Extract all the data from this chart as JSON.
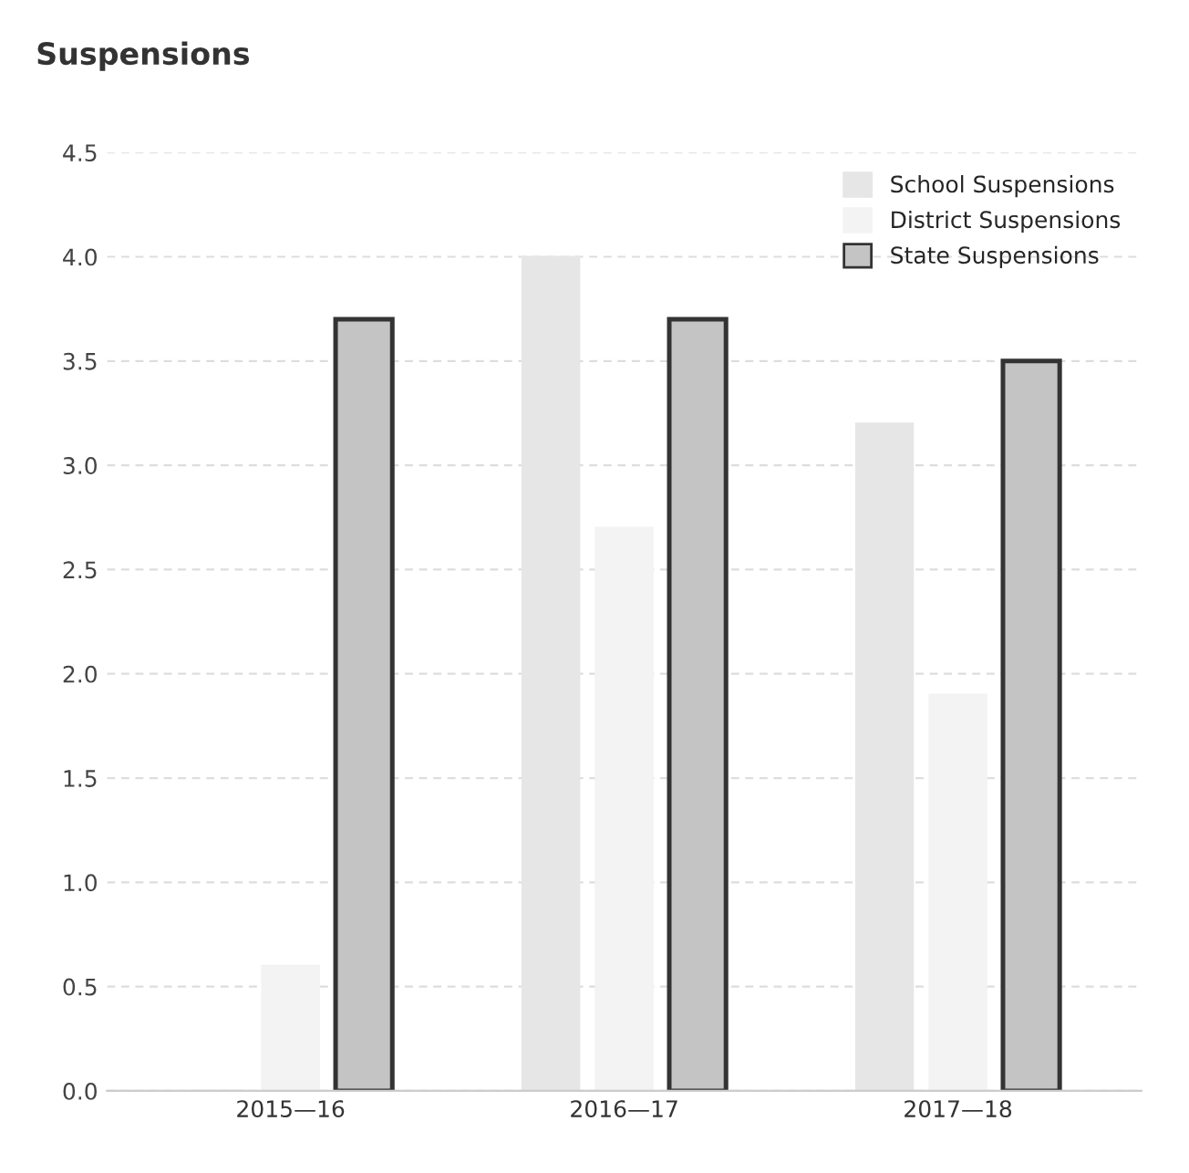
{
  "chart_data": {
    "type": "bar",
    "title": "Suspensions",
    "categories": [
      "2015—16",
      "2016—17",
      "2017—18"
    ],
    "series": [
      {
        "name": "School Suspensions",
        "color": "#e6e6e6",
        "values": [
          0.0,
          4.0,
          3.2
        ]
      },
      {
        "name": "District Suspensions",
        "color": "#f3f3f3",
        "values": [
          0.6,
          2.7,
          1.9
        ]
      },
      {
        "name": "State Suspensions",
        "color": "#c4c4c4",
        "values": [
          3.7,
          3.7,
          3.5
        ]
      }
    ],
    "ylim": [
      0,
      4.5
    ],
    "yticks": [
      {
        "value": 0,
        "label": "0.0"
      },
      {
        "value": 0.5,
        "label": "0.5"
      },
      {
        "value": 1,
        "label": "1.0"
      },
      {
        "value": 1.5,
        "label": "1.5"
      },
      {
        "value": 2,
        "label": "2.0"
      },
      {
        "value": 2.5,
        "label": "2.5"
      },
      {
        "value": 3,
        "label": "3.0"
      },
      {
        "value": 3.5,
        "label": "3.5"
      },
      {
        "value": 4,
        "label": "4.0"
      },
      {
        "value": 4.5,
        "label": "4.5"
      }
    ],
    "grid": "y",
    "legend": "top right"
  }
}
